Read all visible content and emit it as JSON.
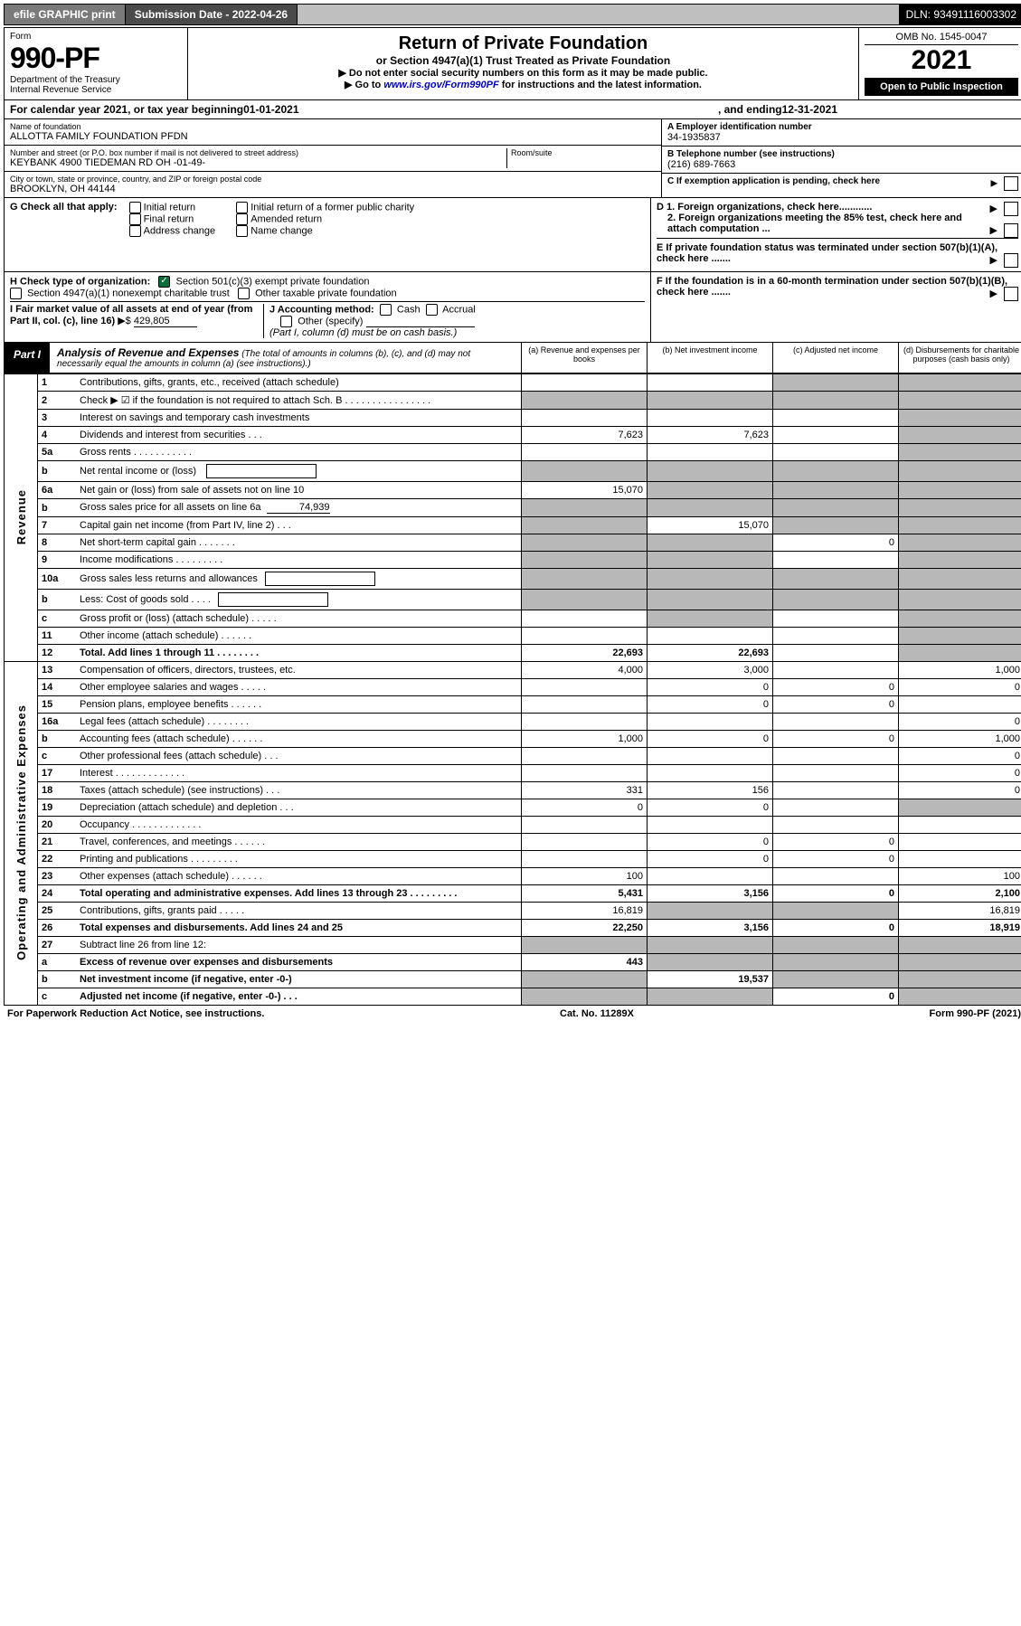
{
  "topbar": {
    "efile": "efile GRAPHIC print",
    "subdate_label": "Submission Date - ",
    "subdate_val": "2022-04-26",
    "dln_label": "DLN: ",
    "dln_val": "93491116003302"
  },
  "header": {
    "form": "Form",
    "formno": "990-PF",
    "dept": "Department of the Treasury",
    "irs": "Internal Revenue Service",
    "title": "Return of Private Foundation",
    "sub": "or Section 4947(a)(1) Trust Treated as Private Foundation",
    "line1": "▶ Do not enter social security numbers on this form as it may be made public.",
    "line2_pre": "▶ Go to ",
    "line2_link": "www.irs.gov/Form990PF",
    "line2_post": " for instructions and the latest information.",
    "omb": "OMB No. 1545-0047",
    "year": "2021",
    "open": "Open to Public Inspection"
  },
  "calendar": {
    "text_pre": "For calendar year 2021, or tax year beginning ",
    "begin": "01-01-2021",
    "text_mid": " , and ending ",
    "end": "12-31-2021"
  },
  "info": {
    "name_lbl": "Name of foundation",
    "name_val": "ALLOTTA FAMILY FOUNDATION PFDN",
    "addr_lbl": "Number and street (or P.O. box number if mail is not delivered to street address)",
    "addr_val": "KEYBANK 4900 TIEDEMAN RD OH -01-49-",
    "room_lbl": "Room/suite",
    "city_lbl": "City or town, state or province, country, and ZIP or foreign postal code",
    "city_val": "BROOKLYN, OH  44144",
    "ein_lbl": "A Employer identification number",
    "ein_val": "34-1935837",
    "tel_lbl": "B Telephone number (see instructions)",
    "tel_val": "(216) 689-7663",
    "c_lbl": "C If exemption application is pending, check here"
  },
  "g": {
    "label": "G Check all that apply:",
    "opts": [
      "Initial return",
      "Final return",
      "Address change",
      "Initial return of a former public charity",
      "Amended return",
      "Name change"
    ],
    "d1": "D 1. Foreign organizations, check here............",
    "d2": "2. Foreign organizations meeting the 85% test, check here and attach computation ...",
    "e": "E  If private foundation status was terminated under section 507(b)(1)(A), check here ......."
  },
  "h": {
    "label": "H Check type of organization:",
    "o1": "Section 501(c)(3) exempt private foundation",
    "o2": "Section 4947(a)(1) nonexempt charitable trust",
    "o3": "Other taxable private foundation"
  },
  "i": {
    "label": "I Fair market value of all assets at end of year (from Part II, col. (c), line 16)",
    "val_prefix": "▶$ ",
    "val": "429,805"
  },
  "j": {
    "label": "J Accounting method:",
    "cash": "Cash",
    "accrual": "Accrual",
    "other": "Other (specify)",
    "note": "(Part I, column (d) must be on cash basis.)"
  },
  "f": {
    "label": "F  If the foundation is in a 60-month termination under section 507(b)(1)(B), check here ......."
  },
  "part1": {
    "tab": "Part I",
    "title": "Analysis of Revenue and Expenses",
    "titlenote": " (The total of amounts in columns (b), (c), and (d) may not necessarily equal the amounts in column (a) (see instructions).)",
    "cols": {
      "a": "(a)    Revenue and expenses per books",
      "b": "(b)  Net investment income",
      "c": "(c)  Adjusted net income",
      "d": "(d)  Disbursements for charitable purposes (cash basis only)"
    }
  },
  "cats": {
    "rev": "Revenue",
    "exp": "Operating and Administrative Expenses"
  },
  "rows": [
    {
      "n": "1",
      "d": "Contributions, gifts, grants, etc., received (attach schedule)",
      "a": "",
      "b": "",
      "c": "grey",
      "dd": "grey"
    },
    {
      "n": "2",
      "d": "Check ▶ ☑ if the foundation is not required to attach Sch. B   .   .   .   .   .   .   .   .   .   .   .   .   .   .   .   .",
      "a": "grey",
      "b": "grey",
      "c": "grey",
      "dd": "grey"
    },
    {
      "n": "3",
      "d": "Interest on savings and temporary cash investments",
      "a": "",
      "b": "",
      "c": "",
      "dd": "grey"
    },
    {
      "n": "4",
      "d": "Dividends and interest from securities   .   .   .",
      "a": "7,623",
      "b": "7,623",
      "c": "",
      "dd": "grey"
    },
    {
      "n": "5a",
      "d": "Gross rents   .   .   .   .   .   .   .   .   .   .   .",
      "a": "",
      "b": "",
      "c": "",
      "dd": "grey"
    },
    {
      "n": "b",
      "d": "Net rental income or (loss)  ",
      "a": "grey",
      "b": "grey",
      "c": "grey",
      "dd": "grey",
      "inline": true
    },
    {
      "n": "6a",
      "d": "Net gain or (loss) from sale of assets not on line 10",
      "a": "15,070",
      "b": "grey",
      "c": "grey",
      "dd": "grey"
    },
    {
      "n": "b",
      "d": "Gross sales price for all assets on line 6a",
      "inline_v": "74,939",
      "a": "grey",
      "b": "grey",
      "c": "grey",
      "dd": "grey"
    },
    {
      "n": "7",
      "d": "Capital gain net income (from Part IV, line 2)   .   .   .",
      "a": "grey",
      "b": "15,070",
      "c": "grey",
      "dd": "grey"
    },
    {
      "n": "8",
      "d": "Net short-term capital gain   .   .   .   .   .   .   .",
      "a": "grey",
      "b": "grey",
      "c": "0",
      "dd": "grey"
    },
    {
      "n": "9",
      "d": "Income modifications   .   .   .   .   .   .   .   .   .",
      "a": "grey",
      "b": "grey",
      "c": "",
      "dd": "grey"
    },
    {
      "n": "10a",
      "d": "Gross sales less returns and allowances",
      "a": "grey",
      "b": "grey",
      "c": "grey",
      "dd": "grey",
      "inline": true
    },
    {
      "n": "b",
      "d": "Less: Cost of goods sold   .   .   .   .",
      "a": "grey",
      "b": "grey",
      "c": "grey",
      "dd": "grey",
      "inline": true
    },
    {
      "n": "c",
      "d": "Gross profit or (loss) (attach schedule)   .   .   .   .   .",
      "a": "",
      "b": "grey",
      "c": "",
      "dd": "grey"
    },
    {
      "n": "11",
      "d": "Other income (attach schedule)   .   .   .   .   .   .",
      "a": "",
      "b": "",
      "c": "",
      "dd": "grey"
    },
    {
      "n": "12",
      "d": "Total. Add lines 1 through 11   .   .   .   .   .   .   .   .",
      "a": "22,693",
      "b": "22,693",
      "c": "",
      "dd": "grey",
      "bold": true
    },
    {
      "n": "13",
      "d": "Compensation of officers, directors, trustees, etc.",
      "a": "4,000",
      "b": "3,000",
      "c": "",
      "dd": "1,000"
    },
    {
      "n": "14",
      "d": "Other employee salaries and wages   .   .   .   .   .",
      "a": "",
      "b": "0",
      "c": "0",
      "dd": "0"
    },
    {
      "n": "15",
      "d": "Pension plans, employee benefits   .   .   .   .   .   .",
      "a": "",
      "b": "0",
      "c": "0",
      "dd": ""
    },
    {
      "n": "16a",
      "d": "Legal fees (attach schedule)   .   .   .   .   .   .   .   .",
      "a": "",
      "b": "",
      "c": "",
      "dd": "0"
    },
    {
      "n": "b",
      "d": "Accounting fees (attach schedule)   .   .   .   .   .   .",
      "a": "1,000",
      "b": "0",
      "c": "0",
      "dd": "1,000"
    },
    {
      "n": "c",
      "d": "Other professional fees (attach schedule)   .   .   .",
      "a": "",
      "b": "",
      "c": "",
      "dd": "0"
    },
    {
      "n": "17",
      "d": "Interest   .   .   .   .   .   .   .   .   .   .   .   .   .",
      "a": "",
      "b": "",
      "c": "",
      "dd": "0"
    },
    {
      "n": "18",
      "d": "Taxes (attach schedule) (see instructions)   .   .   .",
      "a": "331",
      "b": "156",
      "c": "",
      "dd": "0"
    },
    {
      "n": "19",
      "d": "Depreciation (attach schedule) and depletion   .   .   .",
      "a": "0",
      "b": "0",
      "c": "",
      "dd": "grey"
    },
    {
      "n": "20",
      "d": "Occupancy   .   .   .   .   .   .   .   .   .   .   .   .   .",
      "a": "",
      "b": "",
      "c": "",
      "dd": ""
    },
    {
      "n": "21",
      "d": "Travel, conferences, and meetings   .   .   .   .   .   .",
      "a": "",
      "b": "0",
      "c": "0",
      "dd": ""
    },
    {
      "n": "22",
      "d": "Printing and publications   .   .   .   .   .   .   .   .   .",
      "a": "",
      "b": "0",
      "c": "0",
      "dd": ""
    },
    {
      "n": "23",
      "d": "Other expenses (attach schedule)   .   .   .   .   .   .",
      "a": "100",
      "b": "",
      "c": "",
      "dd": "100"
    },
    {
      "n": "24",
      "d": "Total operating and administrative expenses. Add lines 13 through 23   .   .   .   .   .   .   .   .   .",
      "a": "5,431",
      "b": "3,156",
      "c": "0",
      "dd": "2,100",
      "bold": true
    },
    {
      "n": "25",
      "d": "Contributions, gifts, grants paid   .   .   .   .   .",
      "a": "16,819",
      "b": "grey",
      "c": "grey",
      "dd": "16,819"
    },
    {
      "n": "26",
      "d": "Total expenses and disbursements. Add lines 24 and 25",
      "a": "22,250",
      "b": "3,156",
      "c": "0",
      "dd": "18,919",
      "bold": true
    },
    {
      "n": "27",
      "d": "Subtract line 26 from line 12:",
      "a": "grey",
      "b": "grey",
      "c": "grey",
      "dd": "grey"
    },
    {
      "n": "a",
      "d": "Excess of revenue over expenses and disbursements",
      "a": "443",
      "b": "grey",
      "c": "grey",
      "dd": "grey",
      "bold": true
    },
    {
      "n": "b",
      "d": "Net investment income (if negative, enter -0-)",
      "a": "grey",
      "b": "19,537",
      "c": "grey",
      "dd": "grey",
      "bold": true
    },
    {
      "n": "c",
      "d": "Adjusted net income (if negative, enter -0-)   .   .   .",
      "a": "grey",
      "b": "grey",
      "c": "0",
      "dd": "grey",
      "bold": true
    }
  ],
  "footer": {
    "left": "For Paperwork Reduction Act Notice, see instructions.",
    "mid": "Cat. No. 11289X",
    "right": "Form 990-PF (2021)"
  },
  "colors": {
    "grey": "#b8b8b8",
    "darkbtn": "#4a4a4a",
    "lightbtn": "#7a7a7a",
    "checkgreen": "#0b6e3a",
    "link": "#0000cc"
  }
}
